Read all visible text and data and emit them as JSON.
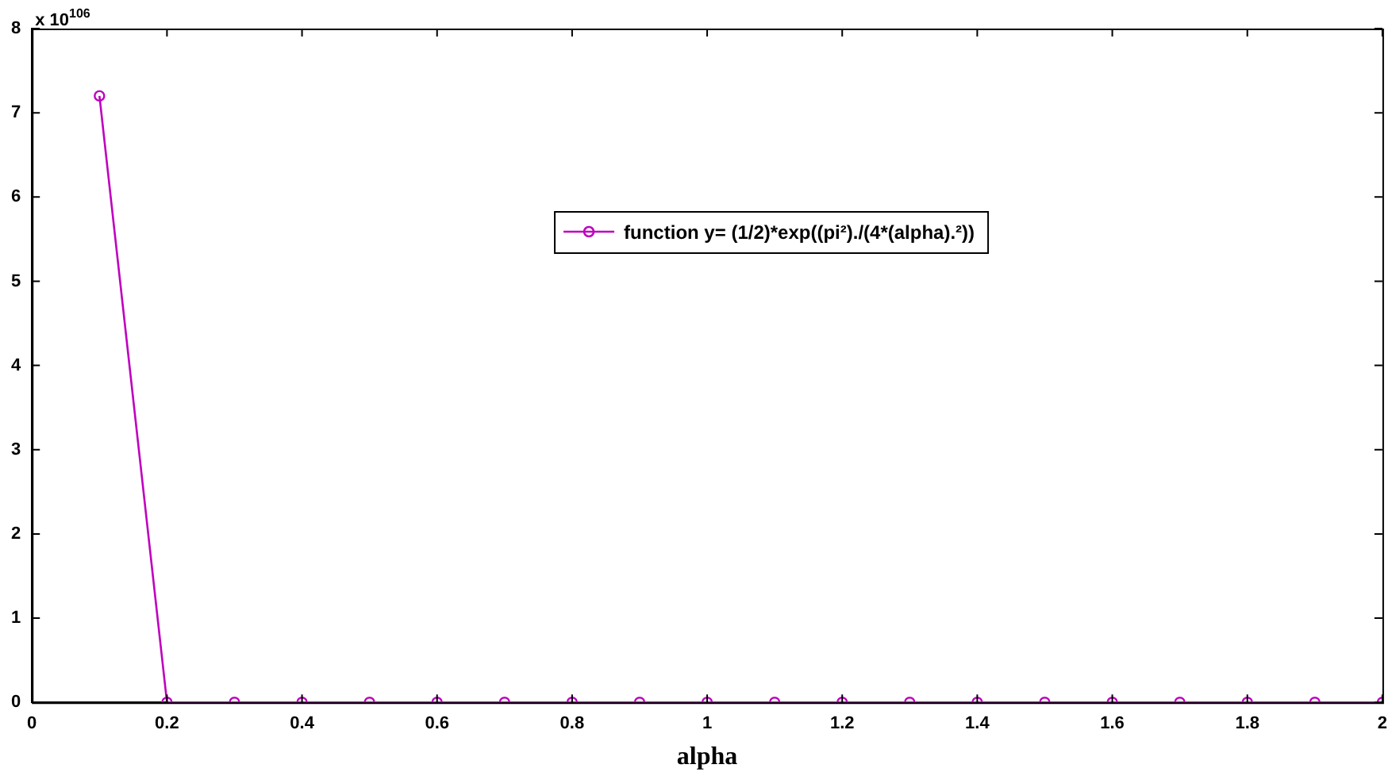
{
  "chart_data": {
    "type": "line",
    "xlabel": "alpha",
    "annotations": [
      "x 10$^{106}$"
    ],
    "x": [
      0.1,
      0.2,
      0.3,
      0.4,
      0.5,
      0.6,
      0.7,
      0.8,
      0.9,
      1.0,
      1.1,
      1.2,
      1.3,
      1.4,
      1.5,
      1.6,
      1.7,
      1.8,
      1.9,
      2.0
    ],
    "series": [
      {
        "name": "function y= (1/2)*exp((pi²)./(4*(alpha).²))",
        "color": "#bf00bf",
        "values": [
          7.2,
          0,
          0,
          0,
          0,
          0,
          0,
          0,
          0,
          0,
          0,
          0,
          0,
          0,
          0,
          0,
          0,
          0,
          0,
          0
        ]
      }
    ],
    "xlim": [
      0,
      2
    ],
    "xticks": [
      0,
      0.2,
      0.4,
      0.6,
      0.8,
      1,
      1.2,
      1.4,
      1.6,
      1.8,
      2
    ],
    "ylim": [
      0,
      8
    ],
    "yticks": [
      0,
      1,
      2,
      3,
      4,
      5,
      6,
      7,
      8
    ],
    "grid": false,
    "legend": "top",
    "marker": "circle",
    "line_style": "solid"
  }
}
